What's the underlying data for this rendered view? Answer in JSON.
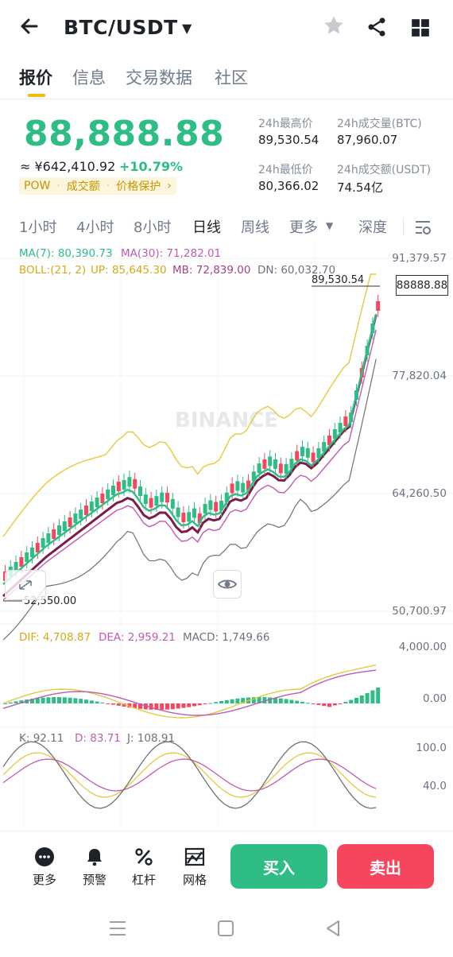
{
  "header": {
    "back_icon": "arrow-left-icon",
    "pair": "BTC/USDT",
    "icons": [
      "star-icon",
      "share-icon",
      "grid-icon"
    ]
  },
  "tabs": [
    {
      "label": "报价",
      "active": true
    },
    {
      "label": "信息",
      "active": false
    },
    {
      "label": "交易数据",
      "active": false
    },
    {
      "label": "社区",
      "active": false
    }
  ],
  "ticker": {
    "price": "88,888.88",
    "cny": "≈ ¥642,410.92",
    "change": "+10.79%",
    "tags": [
      "POW",
      "成交额",
      "价格保护"
    ],
    "high_label": "24h最高价",
    "high_value": "89,530.54",
    "low_label": "24h最低价",
    "low_value": "80,366.02",
    "vol_btc_label": "24h成交量(BTC)",
    "vol_btc_value": "87,960.07",
    "vol_usdt_label": "24h成交额(USDT)",
    "vol_usdt_value": "74.54亿"
  },
  "intervals": {
    "items": [
      "1小时",
      "4小时",
      "8小时",
      "日线",
      "周线",
      "更多",
      "深度"
    ],
    "active": "日线"
  },
  "main_chart": {
    "ma7": "MA(7): 80,390.73",
    "ma30": "MA(30): 71,282.01",
    "boll": "BOLL:(21, 2)",
    "up": "UP: 85,645.30",
    "mb": "MB: 72,839.00",
    "dn": "DN: 60,032.70",
    "y_labels": [
      "91,379.57",
      "77,820.04",
      "64,260.50",
      "50,700.97"
    ],
    "high_marker": "89,530.54",
    "low_marker": "52,550.00",
    "last_price_tag": "88888.88",
    "watermark": "BINANCE"
  },
  "macd": {
    "dif": "DIF: 4,708.87",
    "dea": "DEA: 2,959.21",
    "macd": "MACD: 1,749.66",
    "y_labels": [
      "4,000.00",
      "0.00"
    ]
  },
  "kdj": {
    "k": "K: 92.11",
    "d": "D: 83.71",
    "j": "J: 108.91",
    "y_labels": [
      "100.0",
      "40.0"
    ]
  },
  "bottom": {
    "items": [
      {
        "label": "更多",
        "icon": "more-icon"
      },
      {
        "label": "预警",
        "icon": "bell-icon"
      },
      {
        "label": "杠杆",
        "icon": "percent-icon"
      },
      {
        "label": "网格",
        "icon": "grid-trading-icon"
      }
    ],
    "buy": "买入",
    "sell": "卖出"
  },
  "colors": {
    "up": "#2ebd85",
    "down": "#f6465d",
    "accent": "#f0b90b",
    "ma7": "#e5c93f",
    "ma30": "#c05cb0",
    "boll_mid": "#7a1d4a"
  }
}
